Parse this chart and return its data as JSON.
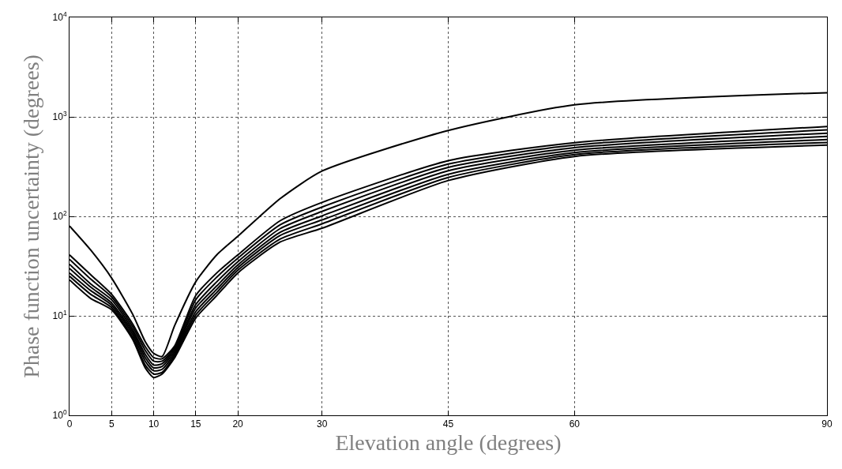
{
  "chart_data": {
    "type": "line",
    "xlabel": "Elevation angle (degrees)",
    "ylabel": "Phase function uncertainty (degrees)",
    "x": [
      0,
      2.5,
      5,
      7.5,
      9,
      10,
      11,
      12.5,
      15,
      17.5,
      20,
      25,
      30,
      45,
      60,
      90
    ],
    "series": [
      {
        "color": "#000000",
        "values": [
          80,
          46,
          24,
          10.4,
          5.5,
          4.2,
          3.9,
          8,
          22,
          41,
          63,
          150,
          285,
          730,
          1320,
          1750
        ]
      },
      {
        "color": "#000000",
        "values": [
          41,
          26,
          16.5,
          8.3,
          4.9,
          3.8,
          3.7,
          5.0,
          16,
          27,
          41,
          90,
          138,
          363,
          550,
          800
        ]
      },
      {
        "color": "#000000",
        "values": [
          37,
          23.5,
          15.5,
          7.8,
          4.5,
          3.5,
          3.5,
          4.8,
          14.5,
          24.5,
          38,
          82,
          124,
          335,
          520,
          740
        ]
      },
      {
        "color": "#000000",
        "values": [
          33,
          21,
          14.5,
          7.3,
          4.1,
          3.2,
          3.3,
          4.6,
          13,
          22,
          35,
          75,
          112,
          310,
          490,
          685
        ]
      },
      {
        "color": "#000000",
        "values": [
          30,
          19.5,
          13.5,
          6.9,
          3.8,
          3.0,
          3.1,
          4.4,
          12,
          20,
          32.5,
          69,
          101,
          287,
          462,
          635
        ]
      },
      {
        "color": "#000000",
        "values": [
          27,
          18,
          12.8,
          6.5,
          3.5,
          2.8,
          2.9,
          4.2,
          11,
          18.5,
          30.5,
          64,
          92,
          265,
          437,
          590
        ]
      },
      {
        "color": "#000000",
        "values": [
          25,
          16.5,
          12.1,
          6.1,
          3.2,
          2.6,
          2.7,
          4.0,
          10.2,
          17.2,
          28.7,
          59,
          84,
          246,
          418,
          553
        ]
      },
      {
        "color": "#000000",
        "values": [
          23,
          15,
          11.5,
          5.8,
          3.0,
          2.4,
          2.6,
          3.8,
          9.5,
          16,
          27,
          55,
          76,
          229,
          400,
          520
        ]
      }
    ],
    "xlim": [
      0,
      90
    ],
    "xticks": [
      0,
      5,
      10,
      15,
      20,
      30,
      45,
      60,
      90
    ],
    "ylim": [
      1,
      10000
    ],
    "yticks": [
      {
        "value": 1,
        "label": "10$^{0}$"
      },
      {
        "value": 10,
        "label": "10$^{1}$"
      },
      {
        "value": 100,
        "label": "10$^{2}$"
      },
      {
        "value": 1000,
        "label": "10$^{3}$"
      },
      {
        "value": 10000,
        "label": "10$^{4}$"
      }
    ],
    "log": "y",
    "grid": true,
    "line_style": "solid"
  }
}
